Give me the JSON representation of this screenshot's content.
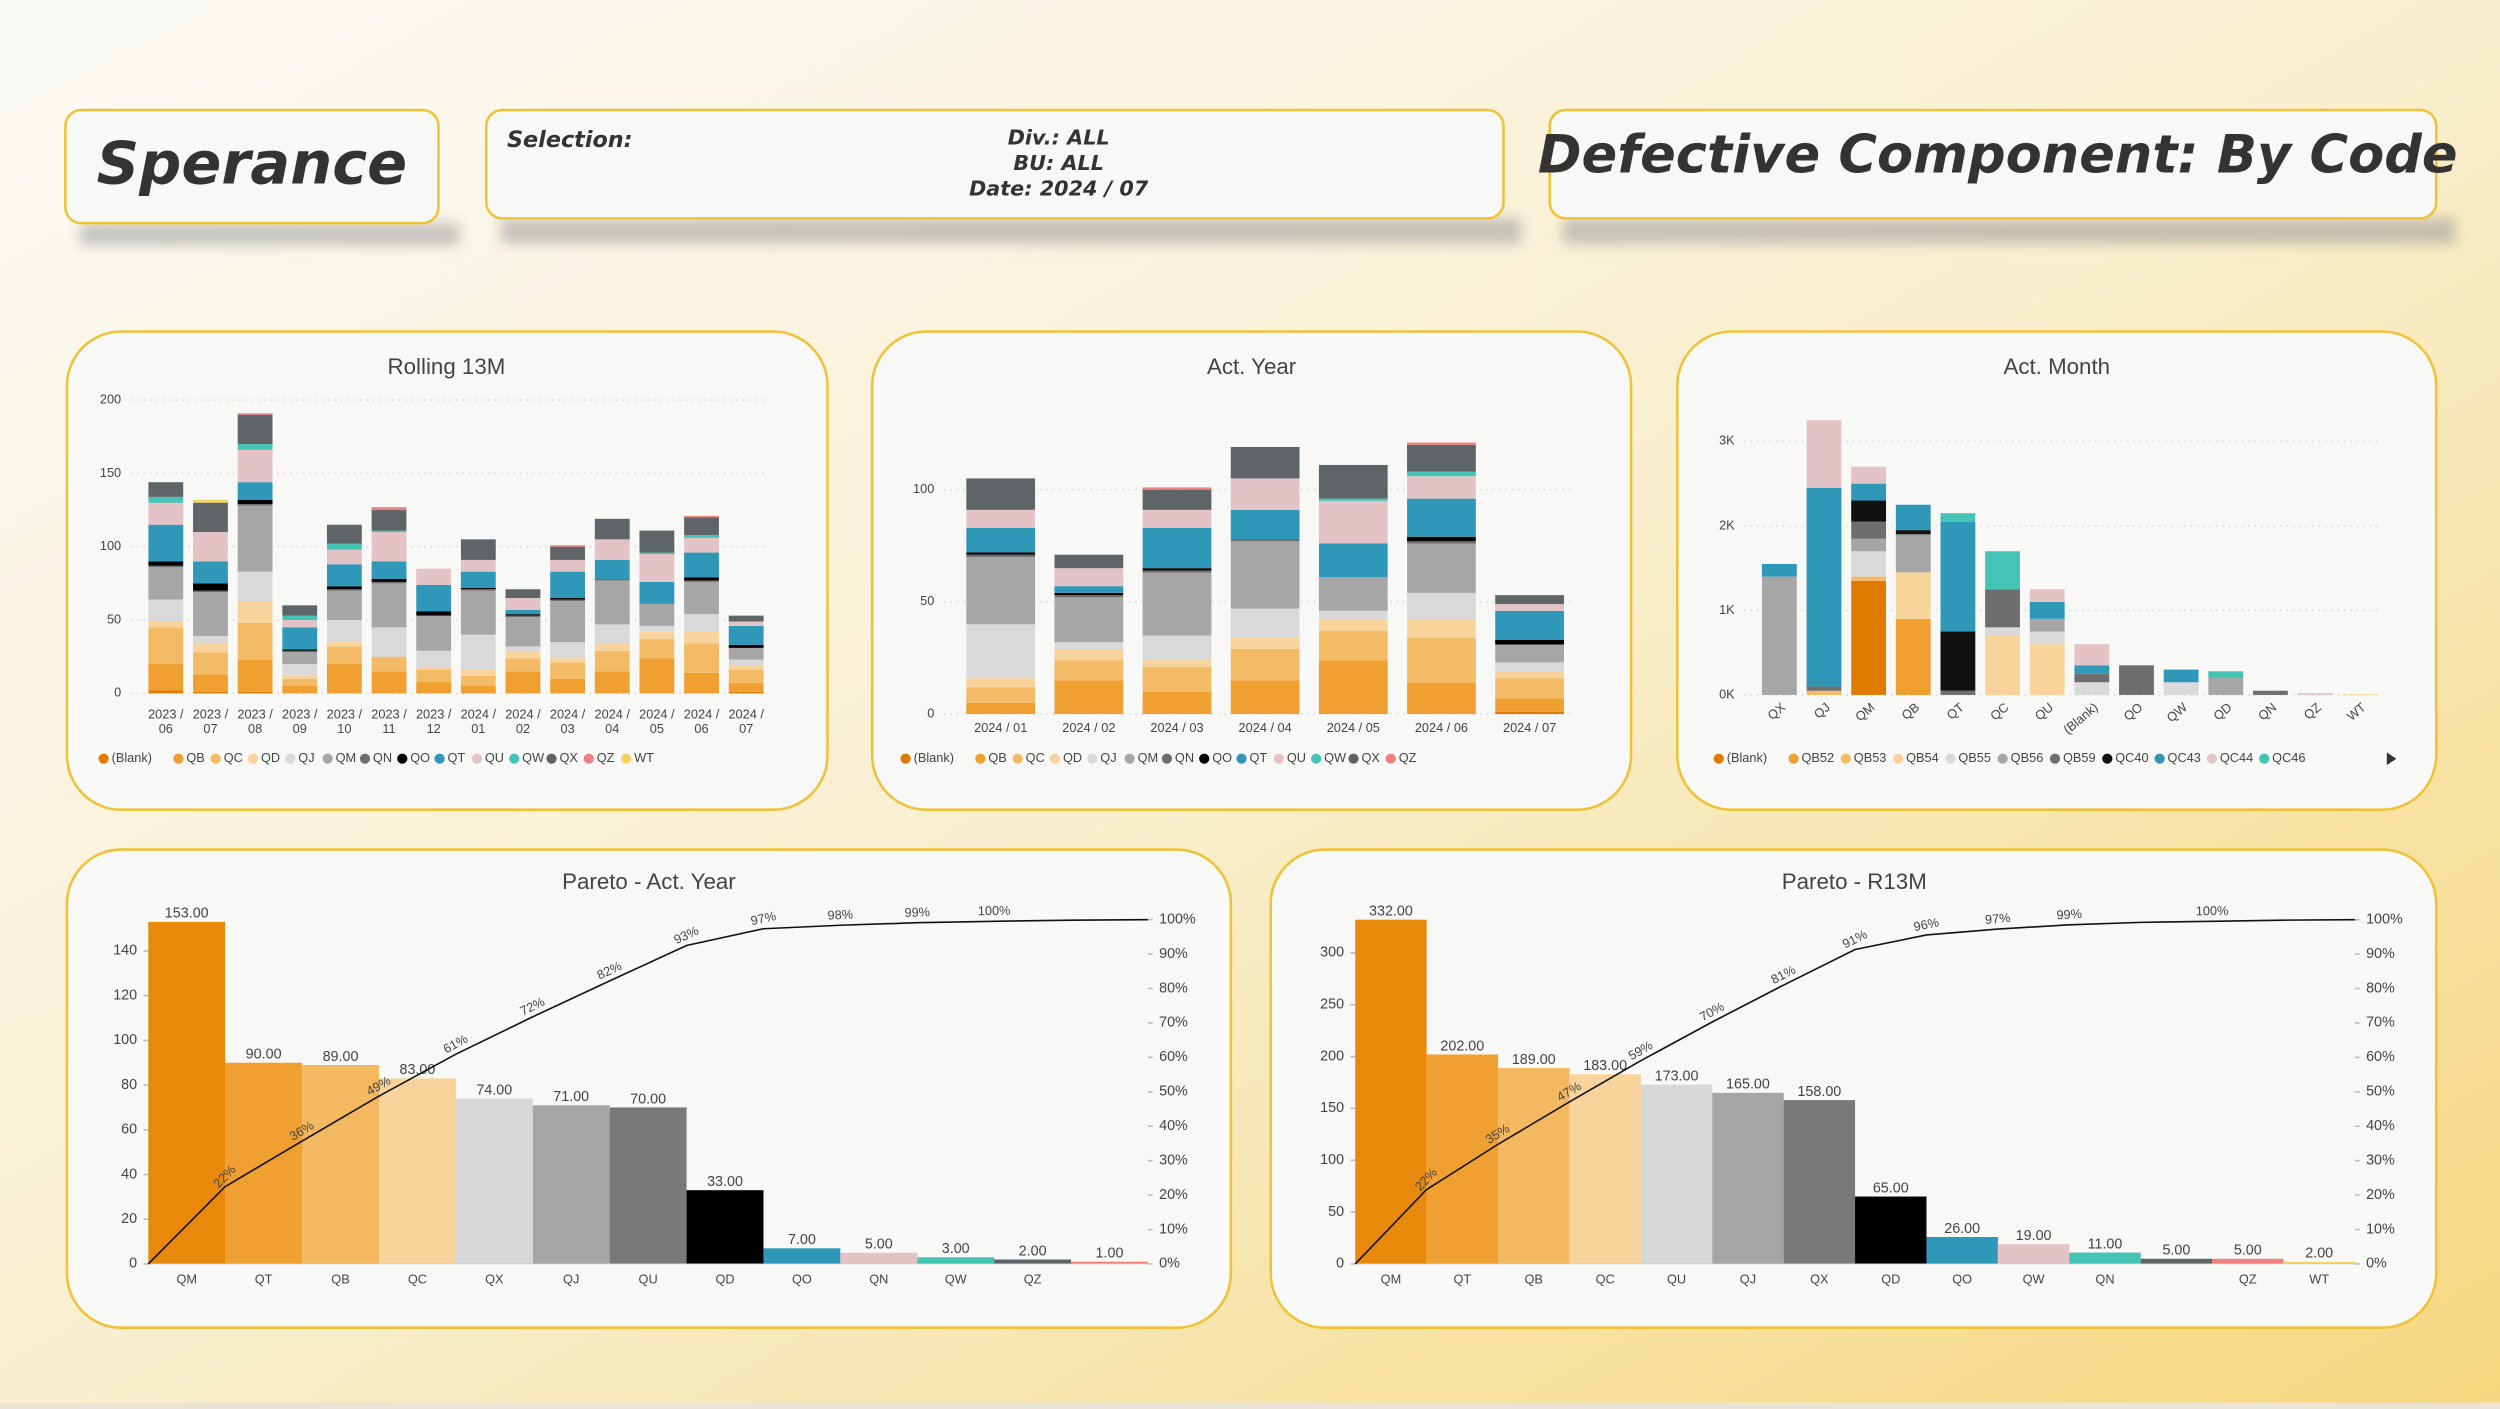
{
  "header": {
    "brand": "Sperance",
    "selection_label": "Selection:",
    "div": "Div.: ALL",
    "bu": "BU: ALL",
    "date": "Date: 2024 / 07",
    "title": "Defective Component: By Code"
  },
  "chart_data": [
    {
      "type": "stacked_bar",
      "title": "Rolling 13M",
      "categories": [
        "2023 / 06",
        "2023 / 07",
        "2023 / 08",
        "2023 / 09",
        "2023 / 10",
        "2023 / 11",
        "2023 / 12",
        "2024 / 01",
        "2024 / 02",
        "2024 / 03",
        "2024 / 04",
        "2024 / 05",
        "2024 / 06",
        "2024 / 07"
      ],
      "series": [
        {
          "name": "(Blank)",
          "color": "#e07b00",
          "values": [
            2,
            1,
            1,
            0,
            0,
            0,
            0,
            0,
            0,
            0,
            0,
            0,
            0,
            1
          ]
        },
        {
          "name": "QB",
          "color": "#f0a030",
          "values": [
            18,
            12,
            22,
            5,
            20,
            15,
            8,
            5,
            15,
            10,
            15,
            24,
            14,
            6
          ]
        },
        {
          "name": "QC",
          "color": "#f4bb66",
          "values": [
            25,
            15,
            25,
            5,
            12,
            10,
            8,
            7,
            9,
            11,
            14,
            13,
            20,
            9
          ]
        },
        {
          "name": "QD",
          "color": "#f8d49c",
          "values": [
            4,
            6,
            15,
            2,
            3,
            0,
            2,
            4,
            5,
            3,
            5,
            5,
            8,
            3
          ]
        },
        {
          "name": "QJ",
          "color": "#d9d9d9",
          "values": [
            15,
            5,
            20,
            8,
            15,
            20,
            11,
            24,
            3,
            11,
            13,
            4,
            12,
            4
          ]
        },
        {
          "name": "QM",
          "color": "#a6a6a6",
          "values": [
            22,
            30,
            45,
            8,
            20,
            30,
            24,
            30,
            20,
            28,
            30,
            15,
            22,
            8
          ]
        },
        {
          "name": "QN",
          "color": "#6e6e6e",
          "values": [
            1,
            1,
            1,
            1,
            1,
            1,
            0,
            1,
            1,
            1,
            1,
            0,
            1,
            0
          ]
        },
        {
          "name": "QO",
          "color": "#000000",
          "values": [
            3,
            5,
            3,
            1,
            2,
            2,
            3,
            1,
            1,
            1,
            0,
            0,
            2,
            2
          ]
        },
        {
          "name": "QT",
          "color": "#2f97b8",
          "values": [
            25,
            15,
            12,
            15,
            15,
            12,
            18,
            11,
            3,
            18,
            13,
            15,
            17,
            13
          ]
        },
        {
          "name": "QU",
          "color": "#e3c3c5",
          "values": [
            15,
            20,
            22,
            5,
            10,
            20,
            11,
            8,
            8,
            8,
            14,
            19,
            10,
            3
          ]
        },
        {
          "name": "QW",
          "color": "#45c4b5",
          "values": [
            4,
            0,
            4,
            3,
            4,
            1,
            0,
            0,
            0,
            0,
            0,
            1,
            2,
            0
          ]
        },
        {
          "name": "QX",
          "color": "#5f6566",
          "values": [
            10,
            20,
            20,
            7,
            13,
            14,
            0,
            14,
            6,
            9,
            14,
            15,
            12,
            4
          ]
        },
        {
          "name": "QZ",
          "color": "#f08080",
          "values": [
            0,
            0,
            1,
            0,
            0,
            2,
            0,
            0,
            0,
            1,
            0,
            0,
            1,
            0
          ]
        },
        {
          "name": "WT",
          "color": "#f2d35f",
          "values": [
            0,
            2,
            0,
            0,
            0,
            0,
            0,
            0,
            0,
            0,
            0,
            0,
            0,
            0
          ]
        }
      ],
      "ylim": [
        0,
        200
      ],
      "yticks": [
        0,
        50,
        100,
        150,
        200
      ],
      "grid": true,
      "legend": "bottom"
    },
    {
      "type": "stacked_bar",
      "title": "Act. Year",
      "categories": [
        "2024 / 01",
        "2024 / 02",
        "2024 / 03",
        "2024 / 04",
        "2024 / 05",
        "2024 / 06",
        "2024 / 07"
      ],
      "series": [
        {
          "name": "(Blank)",
          "color": "#e07b00",
          "values": [
            0,
            0,
            0,
            0,
            0,
            0,
            1
          ]
        },
        {
          "name": "QB",
          "color": "#f0a030",
          "values": [
            5,
            15,
            10,
            15,
            24,
            14,
            6
          ]
        },
        {
          "name": "QC",
          "color": "#f4bb66",
          "values": [
            7,
            9,
            11,
            14,
            13,
            20,
            9
          ]
        },
        {
          "name": "QD",
          "color": "#f8d49c",
          "values": [
            4,
            5,
            3,
            5,
            5,
            8,
            3
          ]
        },
        {
          "name": "QJ",
          "color": "#d9d9d9",
          "values": [
            24,
            3,
            11,
            13,
            4,
            12,
            4
          ]
        },
        {
          "name": "QM",
          "color": "#a6a6a6",
          "values": [
            30,
            20,
            28,
            30,
            15,
            22,
            8
          ]
        },
        {
          "name": "QN",
          "color": "#6e6e6e",
          "values": [
            1,
            1,
            1,
            1,
            0,
            1,
            0
          ]
        },
        {
          "name": "QO",
          "color": "#000000",
          "values": [
            1,
            1,
            1,
            0,
            0,
            2,
            2
          ]
        },
        {
          "name": "QT",
          "color": "#2f97b8",
          "values": [
            11,
            3,
            18,
            13,
            15,
            17,
            13
          ]
        },
        {
          "name": "QU",
          "color": "#e3c3c5",
          "values": [
            8,
            8,
            8,
            14,
            19,
            10,
            3
          ]
        },
        {
          "name": "QW",
          "color": "#45c4b5",
          "values": [
            0,
            0,
            0,
            0,
            1,
            2,
            0
          ]
        },
        {
          "name": "QX",
          "color": "#5f6566",
          "values": [
            14,
            6,
            9,
            14,
            15,
            12,
            4
          ]
        },
        {
          "name": "QZ",
          "color": "#f08080",
          "values": [
            0,
            0,
            1,
            0,
            0,
            1,
            0
          ]
        }
      ],
      "ylim": [
        0,
        125
      ],
      "yticks": [
        0,
        50,
        100
      ],
      "grid": true,
      "legend": "bottom"
    },
    {
      "type": "stacked_bar",
      "title": "Act. Month",
      "categories": [
        "QX",
        "QJ",
        "QM",
        "QB",
        "QT",
        "QC",
        "QU",
        "(Blank)",
        "QO",
        "QW",
        "QD",
        "QN",
        "QZ",
        "WT"
      ],
      "series": [
        {
          "name": "(Blank)",
          "color": "#e07b00",
          "values": [
            0,
            0,
            1350,
            0,
            0,
            0,
            0,
            0,
            0,
            0,
            0,
            0,
            0,
            0
          ]
        },
        {
          "name": "QB52",
          "color": "#f0a030",
          "values": [
            0,
            0,
            0,
            900,
            0,
            0,
            0,
            0,
            0,
            0,
            0,
            0,
            0,
            0
          ]
        },
        {
          "name": "QB53",
          "color": "#f4bb66",
          "values": [
            0,
            50,
            50,
            0,
            0,
            0,
            0,
            0,
            0,
            0,
            0,
            0,
            0,
            0
          ]
        },
        {
          "name": "QB54",
          "color": "#f8d49c",
          "values": [
            0,
            0,
            0,
            550,
            0,
            700,
            600,
            0,
            0,
            0,
            0,
            0,
            0,
            10
          ]
        },
        {
          "name": "QB55",
          "color": "#d9d9d9",
          "values": [
            0,
            0,
            300,
            0,
            0,
            100,
            150,
            150,
            0,
            150,
            0,
            0,
            0,
            0
          ]
        },
        {
          "name": "QB56",
          "color": "#a6a6a6",
          "values": [
            1400,
            0,
            150,
            450,
            0,
            0,
            150,
            0,
            0,
            0,
            200,
            0,
            0,
            0
          ]
        },
        {
          "name": "QB59",
          "color": "#6e6e6e",
          "values": [
            0,
            50,
            200,
            0,
            50,
            450,
            0,
            100,
            350,
            0,
            0,
            50,
            0,
            0
          ]
        },
        {
          "name": "QC40",
          "color": "#111111",
          "values": [
            0,
            0,
            250,
            50,
            700,
            0,
            0,
            0,
            0,
            0,
            0,
            0,
            0,
            0
          ]
        },
        {
          "name": "QC43",
          "color": "#2f97b8",
          "values": [
            150,
            2350,
            200,
            300,
            1300,
            0,
            200,
            100,
            0,
            150,
            0,
            0,
            0,
            0
          ]
        },
        {
          "name": "QC44",
          "color": "#e3c3c5",
          "values": [
            0,
            800,
            200,
            0,
            0,
            0,
            150,
            250,
            0,
            0,
            0,
            0,
            20,
            0
          ]
        },
        {
          "name": "QC46",
          "color": "#45c4b5",
          "values": [
            0,
            0,
            0,
            0,
            100,
            450,
            0,
            0,
            0,
            0,
            80,
            0,
            0,
            0
          ]
        }
      ],
      "ylim": [
        0,
        3300
      ],
      "yticks": [
        {
          "value": 0,
          "label": "0K"
        },
        {
          "value": 1000,
          "label": "1K"
        },
        {
          "value": 2000,
          "label": "2K"
        },
        {
          "value": 3000,
          "label": "3K"
        }
      ],
      "grid": true,
      "legend": "bottom"
    },
    {
      "type": "pareto",
      "title": "Pareto - Act. Year",
      "categories": [
        "QM",
        "QT",
        "QB",
        "QC",
        "QX",
        "QJ",
        "QU",
        "QD",
        "QO",
        "QN",
        "QW",
        "QZ",
        null
      ],
      "values": [
        153,
        90,
        89,
        83,
        74,
        71,
        70,
        33,
        7,
        5,
        3,
        2,
        1
      ],
      "value_labels": [
        "153.00",
        "90.00",
        "89.00",
        "83.00",
        "74.00",
        "71.00",
        "70.00",
        "33.00",
        "7.00",
        "5.00",
        "3.00",
        "2.00",
        "1.00"
      ],
      "colors": [
        "#e8890c",
        "#f0a030",
        "#f4b860",
        "#f8d39b",
        "#d9d8d8",
        "#a6a5a5",
        "#7a7879",
        "#000000",
        "#2f97b8",
        "#e3c3c5",
        "#45c4b5",
        "#5f6566",
        "#f08080"
      ],
      "line": {
        "values": [
          22.47,
          35.68,
          48.75,
          60.94,
          71.81,
          82.23,
          92.51,
          97.36,
          98.38,
          99.12,
          99.56,
          99.85,
          100
        ],
        "value_labels": [
          "22%",
          "36%",
          "49%",
          "61%",
          "72%",
          "82%",
          "93%",
          "97%",
          "98%",
          "99%",
          "100%",
          null,
          null
        ],
        "color": "#111111",
        "axis": "y2"
      },
      "ylim": [
        0,
        154
      ],
      "yticks": [
        0,
        20,
        40,
        60,
        80,
        100,
        120,
        140
      ],
      "y2lim": [
        0,
        100
      ],
      "y2ticks": [
        {
          "value": 0,
          "label": "0%"
        },
        {
          "value": 10,
          "label": "10%"
        },
        {
          "value": 20,
          "label": "20%"
        },
        {
          "value": 30,
          "label": "30%"
        },
        {
          "value": 40,
          "label": "40%"
        },
        {
          "value": 50,
          "label": "50%"
        },
        {
          "value": 60,
          "label": "60%"
        },
        {
          "value": 70,
          "label": "70%"
        },
        {
          "value": 80,
          "label": "80%"
        },
        {
          "value": 90,
          "label": "90%"
        },
        {
          "value": 100,
          "label": "100%"
        }
      ],
      "grid": false
    },
    {
      "type": "pareto",
      "title": "Pareto - R13M",
      "categories": [
        "QM",
        "QT",
        "QB",
        "QC",
        "QU",
        "QJ",
        "QX",
        "QD",
        "QO",
        "QW",
        "QN",
        null,
        "QZ",
        "WT"
      ],
      "values": [
        332,
        202,
        189,
        183,
        173,
        165,
        158,
        65,
        26,
        19,
        11,
        5,
        5,
        2
      ],
      "value_labels": [
        "332.00",
        "202.00",
        "189.00",
        "183.00",
        "173.00",
        "165.00",
        "158.00",
        "65.00",
        "26.00",
        "19.00",
        "11.00",
        "5.00",
        "5.00",
        "2.00"
      ],
      "colors": [
        "#e8890c",
        "#f0a030",
        "#f4b860",
        "#f8d39b",
        "#d9d8d8",
        "#a6a5a5",
        "#7a7879",
        "#000000",
        "#2f97b8",
        "#e3c3c5",
        "#45c4b5",
        "#5f6566",
        "#f08080",
        "#f2d35f"
      ],
      "line": {
        "values": [
          21.63,
          34.79,
          47.1,
          59.02,
          70.29,
          81.04,
          91.34,
          95.57,
          97.26,
          98.5,
          99.22,
          99.54,
          99.87,
          100
        ],
        "value_labels": [
          "22%",
          "35%",
          "47%",
          "59%",
          "70%",
          "81%",
          "91%",
          "96%",
          "97%",
          "99%",
          null,
          "100%",
          null,
          null
        ],
        "color": "#111111",
        "axis": "y2"
      },
      "ylim": [
        0,
        332
      ],
      "yticks": [
        0,
        50,
        100,
        150,
        200,
        250,
        300
      ],
      "y2lim": [
        0,
        100
      ],
      "y2ticks": [
        {
          "value": 0,
          "label": "0%"
        },
        {
          "value": 10,
          "label": "10%"
        },
        {
          "value": 20,
          "label": "20%"
        },
        {
          "value": 30,
          "label": "30%"
        },
        {
          "value": 40,
          "label": "40%"
        },
        {
          "value": 50,
          "label": "50%"
        },
        {
          "value": 60,
          "label": "60%"
        },
        {
          "value": 70,
          "label": "70%"
        },
        {
          "value": 80,
          "label": "80%"
        },
        {
          "value": 90,
          "label": "90%"
        },
        {
          "value": 100,
          "label": "100%"
        }
      ],
      "grid": false
    }
  ]
}
